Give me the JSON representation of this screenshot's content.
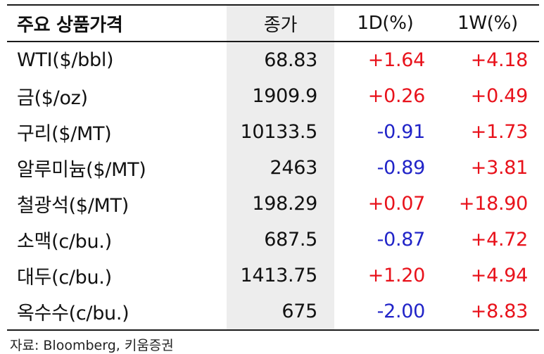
{
  "colors": {
    "positive": "#e8121b",
    "negative": "#2124c8",
    "neutral": "#111111",
    "shade": "#ededed"
  },
  "table": {
    "headers": {
      "name": "주요 상품가격",
      "close": "종가",
      "d1": "1D(%)",
      "w1": "1W(%)"
    },
    "rows": [
      {
        "name": "WTI($/bbl)",
        "close": "68.83",
        "d1": "+1.64",
        "w1": "+4.18"
      },
      {
        "name": "금($/oz)",
        "close": "1909.9",
        "d1": "+0.26",
        "w1": "+0.49"
      },
      {
        "name": "구리($/MT)",
        "close": "10133.5",
        "d1": "-0.91",
        "w1": "+1.73"
      },
      {
        "name": "알루미늄($/MT)",
        "close": "2463",
        "d1": "-0.89",
        "w1": "+3.81"
      },
      {
        "name": "철광석($/MT)",
        "close": "198.29",
        "d1": "+0.07",
        "w1": "+18.90"
      },
      {
        "name": "소맥(c/bu.)",
        "close": "687.5",
        "d1": "-0.87",
        "w1": "+4.72"
      },
      {
        "name": "대두(c/bu.)",
        "close": "1413.75",
        "d1": "+1.20",
        "w1": "+4.94"
      },
      {
        "name": "옥수수(c/bu.)",
        "close": "675",
        "d1": "-2.00",
        "w1": "+8.83"
      }
    ]
  },
  "source": "자료: Bloomberg, 키움증권"
}
